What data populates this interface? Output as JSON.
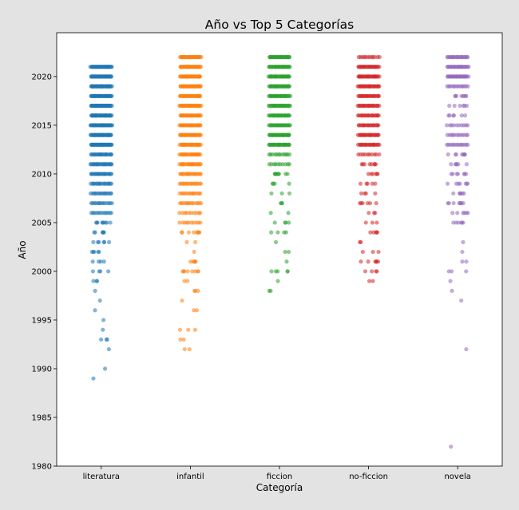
{
  "chart_data": {
    "type": "scatter",
    "subtype": "strip",
    "title": "Año vs Top 5 Categorías",
    "xlabel": "Categoría",
    "ylabel": "Año",
    "ylim": [
      1980,
      2024.5
    ],
    "yticks": [
      1980,
      1985,
      1990,
      1995,
      2000,
      2005,
      2010,
      2015,
      2020
    ],
    "grid": false,
    "legend": "none",
    "categories": [
      "literatura",
      "infantil",
      "ficcion",
      "no-ficcion",
      "novela"
    ],
    "colors": [
      "#1f77b4",
      "#ff7f0e",
      "#2ca02c",
      "#d62728",
      "#9467bd"
    ],
    "series": [
      {
        "category": "literatura",
        "years": [
          2021,
          2020,
          2019,
          2018,
          2017,
          2016,
          2015,
          2014,
          2013,
          2012,
          2011,
          2010,
          2009,
          2008,
          2007,
          2006,
          2005,
          2004,
          2003,
          2002,
          2001,
          2000,
          1999,
          1998,
          1997,
          1996,
          1995,
          1994,
          1993,
          1992,
          1990,
          1989
        ],
        "counts": [
          40,
          40,
          40,
          40,
          40,
          40,
          40,
          40,
          40,
          24,
          24,
          24,
          18,
          16,
          14,
          12,
          9,
          6,
          6,
          5,
          4,
          4,
          3,
          1,
          1,
          1,
          1,
          1,
          3,
          1,
          1,
          1
        ]
      },
      {
        "category": "infantil",
        "years": [
          2022,
          2021,
          2020,
          2019,
          2018,
          2017,
          2016,
          2015,
          2014,
          2013,
          2012,
          2011,
          2010,
          2009,
          2008,
          2007,
          2006,
          2005,
          2004,
          2003,
          2002,
          2001,
          2000,
          1999,
          1998,
          1997,
          1996,
          1994,
          1993,
          1992
        ],
        "counts": [
          32,
          34,
          34,
          32,
          32,
          30,
          30,
          30,
          30,
          30,
          24,
          22,
          20,
          16,
          14,
          14,
          10,
          10,
          8,
          2,
          1,
          5,
          8,
          2,
          3,
          1,
          2,
          3,
          2,
          2
        ]
      },
      {
        "category": "ficcion",
        "years": [
          2022,
          2021,
          2020,
          2019,
          2018,
          2017,
          2016,
          2015,
          2014,
          2013,
          2012,
          2011,
          2010,
          2009,
          2008,
          2007,
          2006,
          2005,
          2004,
          2003,
          2002,
          2001,
          2000,
          1999,
          1998
        ],
        "counts": [
          30,
          32,
          32,
          30,
          30,
          28,
          28,
          26,
          32,
          30,
          12,
          10,
          9,
          4,
          3,
          3,
          2,
          4,
          4,
          1,
          2,
          1,
          5,
          1,
          2
        ]
      },
      {
        "category": "no-ficcion",
        "years": [
          2022,
          2021,
          2020,
          2019,
          2018,
          2017,
          2016,
          2015,
          2014,
          2013,
          2012,
          2011,
          2010,
          2009,
          2008,
          2007,
          2006,
          2005,
          2004,
          2003,
          2002,
          2001,
          2000,
          1999
        ],
        "counts": [
          12,
          28,
          28,
          26,
          24,
          22,
          20,
          20,
          24,
          22,
          10,
          8,
          6,
          5,
          4,
          6,
          3,
          3,
          5,
          2,
          3,
          6,
          4,
          2
        ]
      },
      {
        "category": "novela",
        "years": [
          2022,
          2021,
          2020,
          2019,
          2018,
          2017,
          2016,
          2015,
          2014,
          2013,
          2012,
          2011,
          2010,
          2009,
          2008,
          2007,
          2006,
          2005,
          2003,
          2002,
          2001,
          2000,
          1999,
          1998,
          1997,
          1992,
          1982
        ],
        "counts": [
          22,
          26,
          28,
          14,
          8,
          6,
          6,
          10,
          12,
          14,
          8,
          6,
          7,
          7,
          6,
          8,
          6,
          6,
          1,
          1,
          2,
          3,
          1,
          1,
          1,
          1,
          1
        ]
      }
    ]
  }
}
